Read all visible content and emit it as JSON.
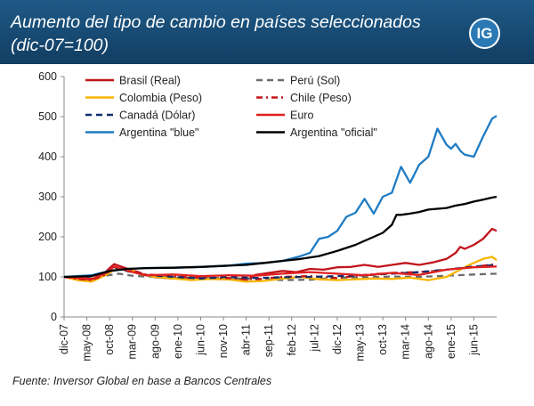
{
  "header": {
    "title": "Aumento del tipo de cambio en países seleccionados\n(dic-07=100)",
    "logo_text": "IG",
    "background": "#1a527c"
  },
  "source_note": "Fuente: Inversor Global en base a Bancos Centrales",
  "chart_data": {
    "type": "line",
    "title": "Aumento del tipo de cambio en países seleccionados (dic-07=100)",
    "xlabel": "",
    "ylabel": "",
    "ylim": [
      0,
      600
    ],
    "yticks": [
      0,
      100,
      200,
      300,
      400,
      500,
      600
    ],
    "grid": false,
    "legend_placement": "top-left",
    "x_tick_labels": [
      "dic-07",
      "may-08",
      "oct-08",
      "mar-09",
      "ago-09",
      "ene-10",
      "jun-10",
      "nov-10",
      "abr-11",
      "sep-11",
      "feb-12",
      "jul-12",
      "dic-12",
      "may-13",
      "oct-13",
      "mar-14",
      "ago-14",
      "ene-15",
      "jun-15"
    ],
    "x_months_range": [
      0,
      95
    ],
    "series": [
      {
        "name": "Brasil (Real)",
        "color": "#c0141a",
        "dash": "solid",
        "x": [
          0,
          3,
          6,
          8,
          10,
          11,
          12,
          14,
          16,
          18,
          20,
          24,
          27,
          30,
          33,
          36,
          40,
          42,
          45,
          48,
          51,
          54,
          57,
          60,
          63,
          66,
          69,
          72,
          75,
          78,
          81,
          84,
          86,
          87,
          88,
          90,
          92,
          94,
          95
        ],
        "values": [
          100,
          96,
          92,
          100,
          122,
          132,
          128,
          120,
          112,
          104,
          99,
          96,
          97,
          99,
          95,
          94,
          92,
          105,
          110,
          115,
          112,
          120,
          118,
          124,
          125,
          130,
          125,
          130,
          135,
          130,
          136,
          145,
          160,
          175,
          170,
          180,
          195,
          220,
          215
        ]
      },
      {
        "name": "Perú (Sol)",
        "color": "#6b6b6b",
        "dash": "dash",
        "x": [
          0,
          3,
          6,
          9,
          12,
          15,
          18,
          24,
          30,
          36,
          42,
          48,
          54,
          60,
          66,
          72,
          78,
          84,
          90,
          95
        ],
        "values": [
          100,
          98,
          95,
          103,
          108,
          103,
          101,
          100,
          98,
          97,
          95,
          92,
          93,
          98,
          99,
          101,
          100,
          103,
          106,
          108
        ]
      },
      {
        "name": "Colombia (Peso)",
        "color": "#f7b500",
        "dash": "solid",
        "x": [
          0,
          3,
          6,
          9,
          11,
          14,
          17,
          20,
          24,
          28,
          32,
          36,
          40,
          44,
          48,
          52,
          56,
          60,
          64,
          68,
          72,
          76,
          80,
          84,
          87,
          89,
          92,
          94,
          95
        ],
        "values": [
          100,
          92,
          88,
          104,
          117,
          120,
          106,
          100,
          96,
          92,
          95,
          94,
          88,
          90,
          96,
          100,
          94,
          92,
          94,
          96,
          95,
          98,
          92,
          100,
          118,
          130,
          145,
          150,
          142
        ]
      },
      {
        "name": "Chile (Peso)",
        "color": "#c0141a",
        "dash": "dashdot",
        "x": [
          0,
          3,
          6,
          9,
          11,
          14,
          18,
          24,
          30,
          36,
          42,
          48,
          54,
          60,
          66,
          72,
          78,
          84,
          90,
          95
        ],
        "values": [
          100,
          95,
          92,
          105,
          125,
          120,
          106,
          102,
          98,
          97,
          94,
          100,
          102,
          97,
          105,
          110,
          112,
          118,
          125,
          132
        ]
      },
      {
        "name": "Canadá (Dólar)",
        "color": "#0e2d6b",
        "dash": "dash",
        "x": [
          0,
          3,
          6,
          9,
          11,
          14,
          18,
          24,
          30,
          36,
          42,
          48,
          54,
          60,
          66,
          72,
          78,
          84,
          90,
          95
        ],
        "values": [
          100,
          98,
          96,
          108,
          124,
          114,
          105,
          100,
          96,
          100,
          97,
          99,
          100,
          102,
          104,
          108,
          112,
          118,
          126,
          130
        ]
      },
      {
        "name": "Euro",
        "color": "#e02020",
        "dash": "solid",
        "x": [
          0,
          3,
          6,
          9,
          11,
          14,
          18,
          24,
          30,
          36,
          42,
          48,
          54,
          60,
          66,
          72,
          78,
          84,
          90,
          95
        ],
        "values": [
          100,
          97,
          95,
          108,
          126,
          115,
          104,
          106,
          102,
          104,
          103,
          108,
          112,
          108,
          104,
          110,
          105,
          118,
          124,
          126
        ]
      },
      {
        "name": "Argentina \"blue\"",
        "color": "#1f7cc4",
        "dash": "solid",
        "x": [
          0,
          6,
          10,
          14,
          18,
          24,
          30,
          36,
          40,
          44,
          48,
          52,
          54,
          56,
          58,
          60,
          62,
          64,
          66,
          68,
          70,
          72,
          74,
          76,
          78,
          80,
          82,
          84,
          85,
          86,
          87,
          88,
          90,
          92,
          94,
          95
        ],
        "values": [
          100,
          104,
          115,
          120,
          122,
          123,
          125,
          128,
          133,
          135,
          140,
          152,
          160,
          195,
          200,
          215,
          250,
          260,
          295,
          258,
          300,
          310,
          375,
          335,
          380,
          400,
          470,
          430,
          420,
          432,
          415,
          405,
          400,
          450,
          495,
          502
        ]
      },
      {
        "name": "Argentina \"oficial\"",
        "color": "#000000",
        "dash": "solid",
        "x": [
          0,
          6,
          10,
          14,
          18,
          24,
          30,
          36,
          40,
          44,
          48,
          52,
          56,
          60,
          64,
          66,
          68,
          70,
          72,
          73,
          74,
          76,
          78,
          80,
          82,
          84,
          86,
          88,
          90,
          92,
          94,
          95
        ],
        "values": [
          100,
          102,
          115,
          120,
          122,
          123,
          125,
          128,
          130,
          135,
          140,
          145,
          152,
          165,
          180,
          190,
          200,
          210,
          230,
          255,
          255,
          258,
          262,
          268,
          270,
          272,
          278,
          282,
          288,
          293,
          298,
          300
        ]
      }
    ]
  }
}
